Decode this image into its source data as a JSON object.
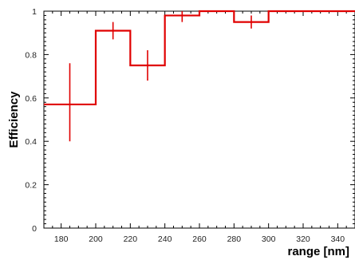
{
  "chart_data": {
    "type": "line",
    "title": "",
    "xlabel": "range [nm]",
    "ylabel": "Efficiency",
    "xlim": [
      170,
      350
    ],
    "ylim": [
      0,
      1
    ],
    "x_ticks": [
      "180",
      "200",
      "220",
      "240",
      "260",
      "280",
      "300",
      "320",
      "340"
    ],
    "y_ticks": [
      "0",
      "0.2",
      "0.4",
      "0.6",
      "0.8",
      "1"
    ],
    "grid": false,
    "series": [
      {
        "style": "step-histogram-with-error-bars",
        "color": "#e00000",
        "bins": [
          {
            "x_low": 170,
            "x_high": 200,
            "x_center": 185,
            "y": 0.57,
            "y_err_low": 0.4,
            "y_err_high": 0.76
          },
          {
            "x_low": 200,
            "x_high": 220,
            "x_center": 210,
            "y": 0.91,
            "y_err_low": 0.87,
            "y_err_high": 0.95
          },
          {
            "x_low": 220,
            "x_high": 240,
            "x_center": 230,
            "y": 0.75,
            "y_err_low": 0.68,
            "y_err_high": 0.82
          },
          {
            "x_low": 240,
            "x_high": 260,
            "x_center": 250,
            "y": 0.98,
            "y_err_low": 0.95,
            "y_err_high": 1.0
          },
          {
            "x_low": 260,
            "x_high": 280,
            "x_center": 270,
            "y": 1.0,
            "y_err_low": 1.0,
            "y_err_high": 1.0
          },
          {
            "x_low": 280,
            "x_high": 300,
            "x_center": 290,
            "y": 0.95,
            "y_err_low": 0.92,
            "y_err_high": 0.98
          },
          {
            "x_low": 300,
            "x_high": 350,
            "x_center": 325,
            "y": 1.0,
            "y_err_low": 1.0,
            "y_err_high": 1.0
          }
        ]
      }
    ]
  }
}
